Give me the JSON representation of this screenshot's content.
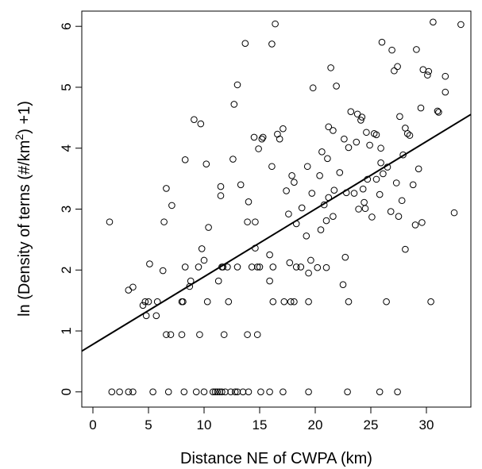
{
  "chart_data": {
    "type": "scatter",
    "xlabel": "Distance NE of CWPA (km)",
    "ylabel_parts": [
      "ln (Density of terns  (#/km",
      "2",
      ") +1)"
    ],
    "xlim": [
      -1,
      34
    ],
    "ylim": [
      -0.25,
      6.25
    ],
    "x_ticks": [
      0,
      5,
      10,
      15,
      20,
      25,
      30
    ],
    "y_ticks": [
      0,
      1,
      2,
      3,
      4,
      5,
      6
    ],
    "grid": false,
    "legend": "none",
    "marker": "open-circle",
    "trend_line": {
      "intercept": 0.78,
      "slope": 0.111
    },
    "points": [
      [
        1.5,
        2.79
      ],
      [
        3.2,
        1.67
      ],
      [
        3.6,
        1.72
      ],
      [
        5.1,
        2.1
      ],
      [
        4.5,
        1.42
      ],
      [
        4.7,
        1.48
      ],
      [
        5.0,
        1.48
      ],
      [
        4.8,
        1.25
      ],
      [
        5.7,
        1.25
      ],
      [
        5.8,
        1.48
      ],
      [
        6.3,
        1.99
      ],
      [
        6.4,
        2.79
      ],
      [
        6.6,
        3.34
      ],
      [
        6.6,
        0.94
      ],
      [
        7.1,
        3.06
      ],
      [
        7.0,
        0.94
      ],
      [
        8.0,
        1.48
      ],
      [
        8.1,
        1.48
      ],
      [
        8.0,
        0.94
      ],
      [
        8.3,
        3.81
      ],
      [
        8.3,
        2.05
      ],
      [
        8.8,
        1.82
      ],
      [
        8.7,
        1.73
      ],
      [
        9.1,
        4.47
      ],
      [
        9.5,
        2.05
      ],
      [
        9.6,
        0.94
      ],
      [
        9.7,
        4.4
      ],
      [
        9.8,
        2.35
      ],
      [
        10.0,
        2.16
      ],
      [
        10.2,
        3.74
      ],
      [
        10.4,
        2.7
      ],
      [
        10.3,
        1.48
      ],
      [
        11.3,
        1.82
      ],
      [
        11.5,
        3.22
      ],
      [
        11.5,
        3.37
      ],
      [
        11.6,
        2.05
      ],
      [
        11.7,
        2.05
      ],
      [
        11.8,
        0.94
      ],
      [
        12.1,
        2.05
      ],
      [
        12.2,
        1.48
      ],
      [
        12.6,
        3.82
      ],
      [
        12.7,
        4.72
      ],
      [
        13.0,
        5.04
      ],
      [
        13.0,
        2.05
      ],
      [
        13.3,
        3.4
      ],
      [
        13.7,
        5.72
      ],
      [
        13.9,
        2.79
      ],
      [
        13.9,
        0.94
      ],
      [
        14.0,
        3.12
      ],
      [
        14.3,
        2.05
      ],
      [
        14.5,
        4.18
      ],
      [
        14.6,
        2.79
      ],
      [
        14.6,
        2.36
      ],
      [
        14.8,
        2.05
      ],
      [
        14.8,
        0.94
      ],
      [
        14.9,
        3.99
      ],
      [
        15.0,
        2.05
      ],
      [
        15.2,
        4.15
      ],
      [
        15.3,
        4.18
      ],
      [
        15.9,
        2.25
      ],
      [
        15.9,
        1.82
      ],
      [
        16.1,
        5.71
      ],
      [
        16.1,
        3.7
      ],
      [
        16.2,
        2.05
      ],
      [
        16.2,
        1.48
      ],
      [
        16.4,
        6.04
      ],
      [
        16.6,
        4.23
      ],
      [
        16.8,
        4.15
      ],
      [
        17.1,
        4.32
      ],
      [
        17.2,
        1.48
      ],
      [
        17.4,
        3.3
      ],
      [
        17.6,
        2.92
      ],
      [
        17.7,
        2.12
      ],
      [
        17.8,
        1.48
      ],
      [
        17.9,
        3.55
      ],
      [
        18.1,
        3.44
      ],
      [
        18.1,
        1.48
      ],
      [
        18.3,
        2.05
      ],
      [
        18.3,
        2.76
      ],
      [
        18.7,
        2.05
      ],
      [
        18.8,
        3.02
      ],
      [
        19.2,
        2.56
      ],
      [
        19.3,
        3.7
      ],
      [
        19.4,
        1.95
      ],
      [
        19.4,
        1.48
      ],
      [
        19.6,
        2.16
      ],
      [
        19.7,
        3.26
      ],
      [
        19.8,
        4.99
      ],
      [
        20.2,
        2.04
      ],
      [
        20.4,
        3.55
      ],
      [
        20.5,
        2.66
      ],
      [
        20.6,
        3.94
      ],
      [
        20.8,
        3.07
      ],
      [
        21.0,
        2.04
      ],
      [
        21.0,
        2.81
      ],
      [
        21.1,
        3.83
      ],
      [
        21.2,
        3.19
      ],
      [
        21.2,
        4.35
      ],
      [
        21.4,
        5.32
      ],
      [
        21.6,
        4.29
      ],
      [
        21.6,
        2.88
      ],
      [
        21.7,
        3.31
      ],
      [
        21.9,
        5.02
      ],
      [
        22.2,
        3.6
      ],
      [
        22.5,
        1.76
      ],
      [
        22.6,
        4.15
      ],
      [
        22.7,
        2.21
      ],
      [
        22.8,
        3.27
      ],
      [
        23.0,
        4.01
      ],
      [
        23.0,
        1.48
      ],
      [
        23.2,
        4.6
      ],
      [
        23.5,
        3.26
      ],
      [
        23.7,
        4.1
      ],
      [
        23.8,
        4.56
      ],
      [
        23.9,
        3.0
      ],
      [
        24.1,
        4.46
      ],
      [
        24.2,
        4.51
      ],
      [
        24.3,
        3.33
      ],
      [
        24.4,
        3.11
      ],
      [
        24.5,
        3.01
      ],
      [
        24.6,
        4.26
      ],
      [
        24.7,
        3.49
      ],
      [
        24.9,
        4.05
      ],
      [
        25.1,
        2.87
      ],
      [
        25.3,
        4.24
      ],
      [
        25.5,
        3.49
      ],
      [
        25.5,
        4.22
      ],
      [
        25.8,
        3.24
      ],
      [
        25.9,
        3.76
      ],
      [
        25.9,
        4.0
      ],
      [
        26.0,
        5.74
      ],
      [
        26.1,
        3.58
      ],
      [
        26.4,
        1.48
      ],
      [
        26.5,
        3.69
      ],
      [
        26.8,
        2.96
      ],
      [
        26.9,
        5.61
      ],
      [
        27.1,
        5.27
      ],
      [
        27.3,
        3.43
      ],
      [
        27.4,
        5.34
      ],
      [
        27.6,
        4.52
      ],
      [
        27.5,
        2.88
      ],
      [
        27.8,
        3.14
      ],
      [
        27.9,
        3.89
      ],
      [
        28.1,
        4.33
      ],
      [
        28.1,
        2.34
      ],
      [
        28.3,
        4.24
      ],
      [
        28.5,
        4.21
      ],
      [
        28.8,
        3.4
      ],
      [
        29.0,
        2.74
      ],
      [
        29.1,
        5.62
      ],
      [
        29.3,
        3.66
      ],
      [
        29.5,
        4.66
      ],
      [
        29.6,
        2.78
      ],
      [
        29.7,
        5.29
      ],
      [
        30.1,
        5.2
      ],
      [
        30.2,
        5.26
      ],
      [
        30.4,
        1.48
      ],
      [
        30.6,
        6.07
      ],
      [
        31.0,
        4.61
      ],
      [
        31.1,
        4.59
      ],
      [
        31.7,
        4.92
      ],
      [
        31.7,
        5.18
      ],
      [
        32.5,
        2.94
      ],
      [
        33.1,
        6.03
      ],
      [
        1.7,
        0
      ],
      [
        2.4,
        0
      ],
      [
        3.2,
        0
      ],
      [
        3.6,
        0
      ],
      [
        5.4,
        0
      ],
      [
        6.8,
        0
      ],
      [
        8.2,
        0
      ],
      [
        9.3,
        0
      ],
      [
        10.0,
        0
      ],
      [
        10.8,
        0
      ],
      [
        11.0,
        0
      ],
      [
        11.2,
        0
      ],
      [
        11.4,
        0
      ],
      [
        11.6,
        0
      ],
      [
        11.9,
        0
      ],
      [
        12.4,
        0
      ],
      [
        12.8,
        0
      ],
      [
        13.0,
        0
      ],
      [
        13.5,
        0
      ],
      [
        14.0,
        0
      ],
      [
        15.1,
        0
      ],
      [
        15.9,
        0
      ],
      [
        17.1,
        0
      ],
      [
        19.4,
        0
      ],
      [
        22.9,
        0
      ],
      [
        25.8,
        0
      ],
      [
        27.4,
        0
      ]
    ]
  }
}
